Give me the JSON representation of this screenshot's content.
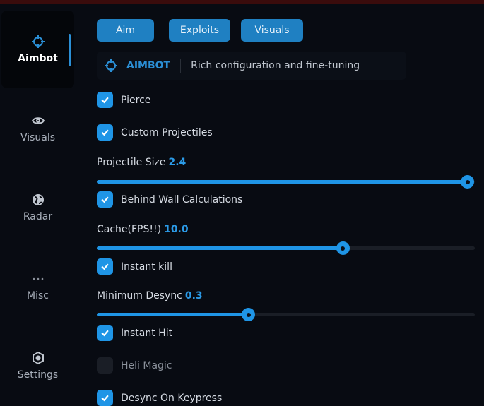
{
  "sidebar": {
    "items": [
      {
        "label": "Aimbot",
        "icon": "crosshair-icon",
        "active": true
      },
      {
        "label": "Visuals",
        "icon": "eye-icon"
      },
      {
        "label": "Radar",
        "icon": "globe-icon"
      },
      {
        "label": "Misc",
        "icon": "ellipsis-icon"
      },
      {
        "label": "Settings",
        "icon": "gear-icon"
      }
    ]
  },
  "tabs": [
    {
      "label": "Aim"
    },
    {
      "label": "Exploits"
    },
    {
      "label": "Visuals"
    }
  ],
  "header": {
    "title": "AIMBOT",
    "description": "Rich configuration and fine-tuning"
  },
  "options": {
    "pierce": {
      "label": "Pierce",
      "checked": true
    },
    "custom_projectiles": {
      "label": "Custom Projectiles",
      "checked": true
    },
    "projectile_size": {
      "label": "Projectile Size",
      "value": "2.4",
      "fill_fraction": 0.98
    },
    "behind_wall": {
      "label": "Behind Wall Calculations",
      "checked": true
    },
    "cache": {
      "label": "Cache(FPS!!)",
      "value": "10.0",
      "fill_fraction": 0.65
    },
    "instant_kill": {
      "label": "Instant kill",
      "checked": true
    },
    "min_desync": {
      "label": "Minimum Desync",
      "value": "0.3",
      "fill_fraction": 0.4
    },
    "instant_hit": {
      "label": "Instant Hit",
      "checked": true
    },
    "heli_magic": {
      "label": "Heli Magic",
      "checked": false
    },
    "desync_keypress": {
      "label": "Desync On Keypress",
      "checked": true
    }
  },
  "colors": {
    "accent": "#1f95e6",
    "background": "#080b12",
    "tab": "#1f80c2"
  }
}
